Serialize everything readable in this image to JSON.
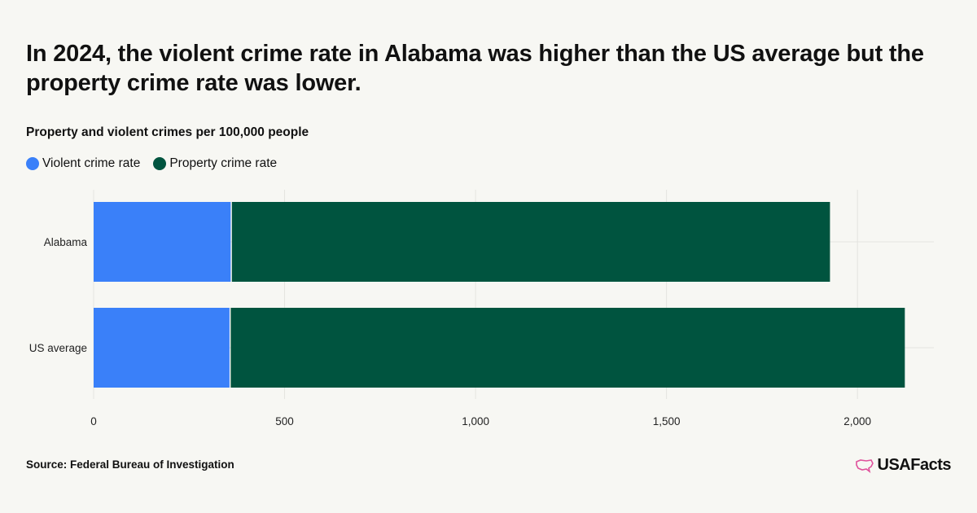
{
  "title": "In 2024, the violent crime rate in Alabama was higher than the US average but the property crime rate was lower.",
  "subtitle": "Property and violent crimes per 100,000 people",
  "source": "Source: Federal Bureau of Investigation",
  "brand": "USAFacts",
  "colors": {
    "violent": "#3a80f9",
    "property": "#00543f",
    "grid": "#e4e4e0",
    "logo_mark": "#e0529c"
  },
  "chart_data": {
    "type": "bar",
    "orientation": "horizontal",
    "stacked": true,
    "categories": [
      "Alabama",
      "US average"
    ],
    "series": [
      {
        "name": "Violent crime rate",
        "values": [
          362,
          359
        ]
      },
      {
        "name": "Property crime rate",
        "values": [
          1566,
          1765
        ]
      }
    ],
    "xlim": [
      0,
      2200
    ],
    "xticks": [
      0,
      500,
      1000,
      1500,
      2000
    ],
    "xtick_labels": [
      "0",
      "500",
      "1,000",
      "1,500",
      "2,000"
    ],
    "grid": true,
    "legend_position": "top-left"
  }
}
